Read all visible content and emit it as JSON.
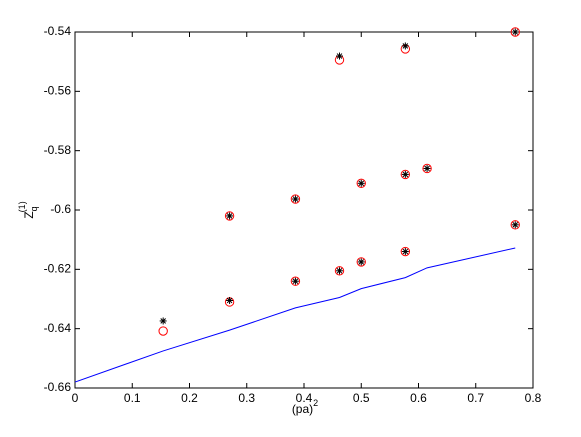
{
  "chart_data": {
    "type": "scatter",
    "xlabel": {
      "main": "(pa)",
      "superscript": "2"
    },
    "ylabel": {
      "main": "Z",
      "subscript": "q",
      "superscript": "(1)"
    },
    "xlim": [
      0,
      0.8
    ],
    "ylim": [
      -0.66,
      -0.54
    ],
    "xticks": [
      0,
      0.1,
      0.2,
      0.3,
      0.4,
      0.5,
      0.6,
      0.7,
      0.8
    ],
    "yticks": [
      -0.66,
      -0.64,
      -0.62,
      -0.6,
      -0.58,
      -0.56,
      -0.54
    ],
    "series": [
      {
        "marker": "line",
        "color": "#0000ff",
        "x": [
          0,
          0.154,
          0.27,
          0.385,
          0.462,
          0.5,
          0.577,
          0.615,
          0.769
        ],
        "values": [
          -0.658,
          -0.6475,
          -0.6405,
          -0.633,
          -0.6295,
          -0.6265,
          -0.6228,
          -0.6195,
          -0.6128
        ]
      },
      {
        "marker": "circle",
        "color": "#ff0000",
        "x": [
          0.154,
          0.27,
          0.27,
          0.385,
          0.385,
          0.462,
          0.462,
          0.5,
          0.5,
          0.577,
          0.577,
          0.577,
          0.615,
          0.769,
          0.769
        ],
        "values": [
          -0.6408,
          -0.602,
          -0.631,
          -0.5963,
          -0.624,
          -0.5494,
          -0.6205,
          -0.591,
          -0.6175,
          -0.5457,
          -0.588,
          -0.614,
          -0.586,
          -0.54,
          -0.605
        ]
      },
      {
        "marker": "star",
        "color": "#000000",
        "x": [
          0.154,
          0.27,
          0.27,
          0.385,
          0.385,
          0.462,
          0.462,
          0.5,
          0.5,
          0.577,
          0.577,
          0.577,
          0.615,
          0.769,
          0.769
        ],
        "values": [
          -0.6374,
          -0.602,
          -0.6305,
          -0.5963,
          -0.624,
          -0.5481,
          -0.6205,
          -0.591,
          -0.6175,
          -0.5447,
          -0.588,
          -0.614,
          -0.586,
          -0.54,
          -0.605
        ]
      }
    ]
  }
}
